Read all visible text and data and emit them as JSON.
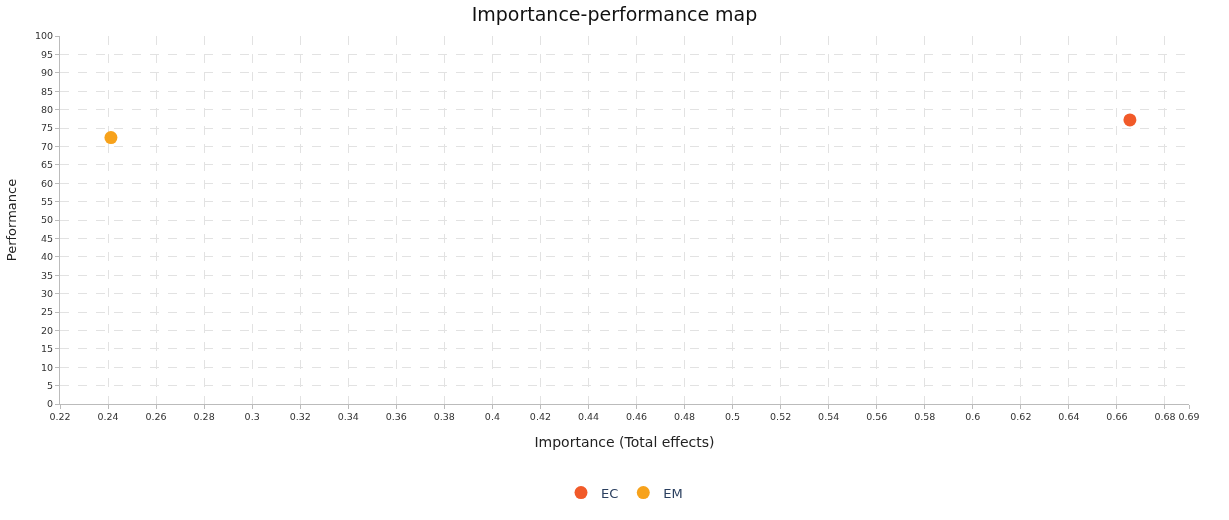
{
  "chart_data": {
    "type": "scatter",
    "title": "Importance-performance map",
    "xlabel": "Importance (Total effects)",
    "ylabel": "Performance",
    "series": [
      {
        "name": "EC",
        "color": "#f15a29",
        "x": [
          0.6654
        ],
        "values": [
          77.2
        ]
      },
      {
        "name": "EM",
        "color": "#f7a21b",
        "x": [
          0.2412
        ],
        "values": [
          72.4
        ]
      }
    ],
    "xlim": [
      0.22,
      0.69
    ],
    "xticks": [
      0.22,
      0.24,
      0.26,
      0.28,
      0.3,
      0.32,
      0.34,
      0.36,
      0.38,
      0.4,
      0.42,
      0.44,
      0.46,
      0.48,
      0.5,
      0.52,
      0.54,
      0.56,
      0.58,
      0.6,
      0.62,
      0.64,
      0.66,
      0.68,
      0.69
    ],
    "ylim": [
      0,
      100
    ],
    "yticks": [
      0,
      5,
      10,
      15,
      20,
      25,
      30,
      35,
      40,
      45,
      50,
      55,
      60,
      65,
      70,
      75,
      80,
      85,
      90,
      95,
      100
    ],
    "grid": true,
    "legend": "bottom",
    "marker": "circle"
  }
}
